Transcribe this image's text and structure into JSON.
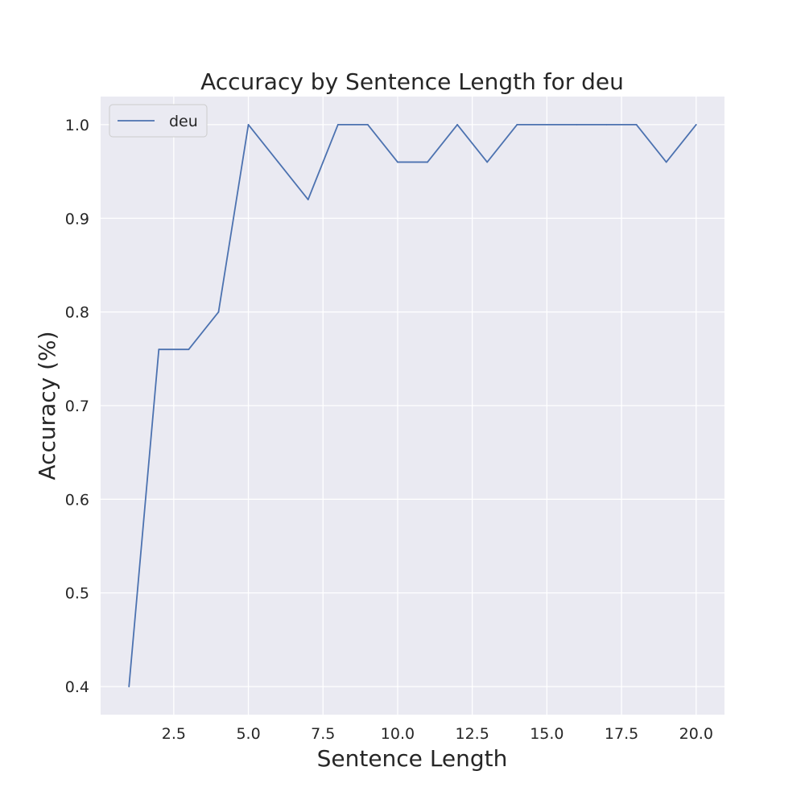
{
  "chart_data": {
    "type": "line",
    "title": "Accuracy by Sentence Length for deu",
    "xlabel": "Sentence Length",
    "ylabel": "Accuracy (%)",
    "xlim": [
      0.05,
      20.95
    ],
    "ylim": [
      0.37,
      1.03
    ],
    "xticks": [
      2.5,
      5.0,
      7.5,
      10.0,
      12.5,
      15.0,
      17.5,
      20.0
    ],
    "xtick_labels": [
      "2.5",
      "5.0",
      "7.5",
      "10.0",
      "12.5",
      "15.0",
      "17.5",
      "20.0"
    ],
    "yticks": [
      0.4,
      0.5,
      0.6,
      0.7,
      0.8,
      0.9,
      1.0
    ],
    "ytick_labels": [
      "0.4",
      "0.5",
      "0.6",
      "0.7",
      "0.8",
      "0.9",
      "1.0"
    ],
    "grid": true,
    "legend_position": "top-left",
    "background_color": "#eaeaf2",
    "grid_color": "#ffffff",
    "series": [
      {
        "name": "deu",
        "color": "#4c72b0",
        "x": [
          1,
          2,
          3,
          4,
          5,
          6,
          7,
          8,
          9,
          10,
          11,
          12,
          13,
          14,
          15,
          16,
          17,
          18,
          19,
          20
        ],
        "y": [
          0.4,
          0.76,
          0.76,
          0.8,
          1.0,
          0.96,
          0.92,
          1.0,
          1.0,
          0.96,
          0.96,
          1.0,
          0.96,
          1.0,
          1.0,
          1.0,
          1.0,
          1.0,
          0.96,
          1.0
        ]
      }
    ]
  }
}
